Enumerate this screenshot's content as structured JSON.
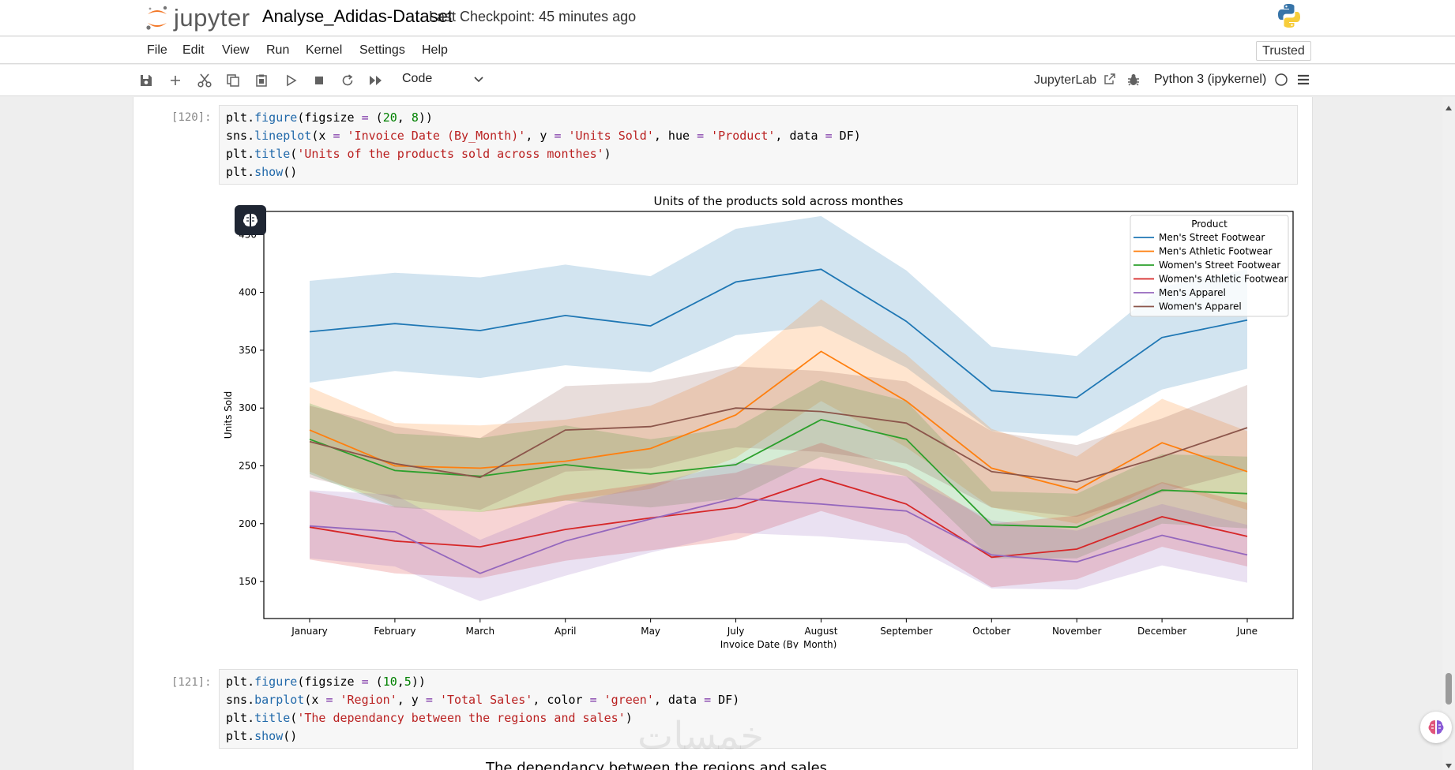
{
  "header": {
    "logo_text": "jupyter",
    "notebook_title": "Analyse_Adidas-Dataset",
    "checkpoint": "Last Checkpoint: 45 minutes ago",
    "trusted": "Trusted"
  },
  "menu": [
    "File",
    "Edit",
    "View",
    "Run",
    "Kernel",
    "Settings",
    "Help"
  ],
  "toolbar": {
    "icons": [
      "save-icon",
      "add-icon",
      "cut-icon",
      "copy-icon",
      "paste-icon",
      "run-icon",
      "stop-icon",
      "restart-icon",
      "fast-forward-icon"
    ],
    "cell_type": "Code",
    "jupyterlab": "JupyterLab",
    "kernel": "Python 3 (ipykernel)"
  },
  "cells": [
    {
      "prompt": "[120]:",
      "lines": [
        "plt.figure(figsize = (20, 8))",
        "sns.lineplot(x = 'Invoice Date (By_Month)', y = 'Units Sold', hue = 'Product', data = DF)",
        "plt.title('Units of the products sold across monthes')",
        "plt.show()"
      ]
    },
    {
      "prompt": "[121]:",
      "lines": [
        "plt.figure(figsize = (10,5))",
        "sns.barplot(x = 'Region', y = 'Total Sales', color = 'green', data = DF)",
        "plt.title('The dependancy between the regions and sales')",
        "plt.show()"
      ]
    }
  ],
  "next_output_title": "The dependancy between the regions and sales",
  "watermark": "خمسات",
  "chart_data": {
    "type": "line",
    "title": "Units of the products sold across monthes",
    "xlabel": "Invoice Date (By_Month)",
    "ylabel": "Units Sold",
    "ylim": [
      118,
      470
    ],
    "yticks": [
      150,
      200,
      250,
      300,
      350,
      400,
      450
    ],
    "categories": [
      "January",
      "February",
      "March",
      "April",
      "May",
      "July",
      "August",
      "September",
      "October",
      "November",
      "December",
      "June"
    ],
    "legend_title": "Product",
    "legend_position": "top-right",
    "grid": false,
    "series": [
      {
        "name": "Men's Street Footwear",
        "color": "#1f77b4",
        "values": [
          366,
          373,
          367,
          380,
          371,
          409,
          420,
          375,
          315,
          309,
          361,
          376
        ],
        "lower": [
          322,
          332,
          326,
          337,
          331,
          363,
          371,
          335,
          280,
          276,
          316,
          334
        ],
        "upper": [
          410,
          417,
          413,
          424,
          414,
          455,
          466,
          419,
          353,
          345,
          405,
          420
        ]
      },
      {
        "name": "Men's Athletic Footwear",
        "color": "#ff7f0e",
        "values": [
          281,
          250,
          248,
          254,
          265,
          294,
          349,
          306,
          248,
          229,
          270,
          245
        ],
        "lower": [
          245,
          215,
          210,
          220,
          230,
          257,
          306,
          266,
          214,
          200,
          235,
          212
        ],
        "upper": [
          318,
          287,
          285,
          290,
          302,
          334,
          394,
          346,
          282,
          258,
          308,
          280
        ]
      },
      {
        "name": "Women's Street Footwear",
        "color": "#2ca02c",
        "values": [
          273,
          246,
          241,
          251,
          243,
          251,
          290,
          273,
          199,
          197,
          229,
          226
        ],
        "lower": [
          243,
          214,
          210,
          220,
          214,
          222,
          258,
          241,
          170,
          170,
          200,
          196
        ],
        "upper": [
          304,
          278,
          274,
          285,
          273,
          283,
          324,
          306,
          228,
          226,
          260,
          258
        ]
      },
      {
        "name": "Women's Athletic Footwear",
        "color": "#d62728",
        "values": [
          197,
          185,
          180,
          195,
          205,
          214,
          239,
          217,
          171,
          178,
          206,
          189
        ],
        "lower": [
          169,
          157,
          153,
          168,
          177,
          186,
          211,
          190,
          145,
          152,
          180,
          163
        ],
        "upper": [
          228,
          215,
          210,
          225,
          235,
          244,
          270,
          247,
          200,
          207,
          236,
          218
        ]
      },
      {
        "name": "Men's Apparel",
        "color": "#9467bd",
        "values": [
          198,
          193,
          157,
          185,
          204,
          222,
          217,
          211,
          173,
          167,
          190,
          173
        ],
        "lower": [
          170,
          163,
          133,
          155,
          175,
          192,
          189,
          183,
          144,
          143,
          164,
          149
        ],
        "upper": [
          229,
          225,
          186,
          216,
          234,
          253,
          247,
          241,
          203,
          194,
          217,
          199
        ]
      },
      {
        "name": "Women's Apparel",
        "color": "#8c564b",
        "values": [
          271,
          252,
          240,
          281,
          284,
          300,
          297,
          287,
          245,
          236,
          258,
          283
        ],
        "lower": [
          240,
          222,
          212,
          245,
          248,
          266,
          262,
          252,
          214,
          206,
          227,
          246
        ],
        "upper": [
          302,
          284,
          274,
          319,
          322,
          336,
          332,
          323,
          280,
          268,
          291,
          320
        ]
      }
    ]
  }
}
